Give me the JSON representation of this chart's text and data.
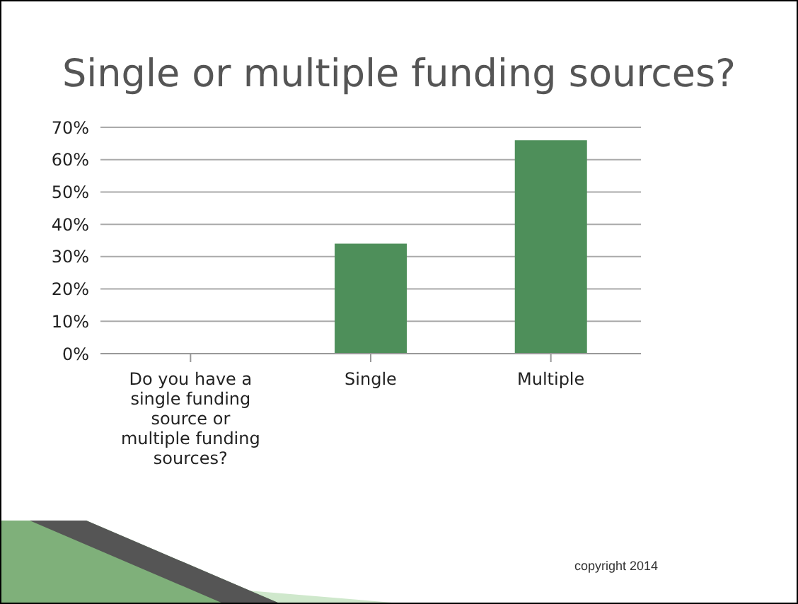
{
  "chart_data": {
    "type": "bar",
    "title": "Single or multiple funding sources?",
    "categories": [
      "Do you have a single funding source or multiple funding sources?",
      "Single",
      "Multiple"
    ],
    "values": [
      null,
      34,
      66
    ],
    "color": "#4e8f5a",
    "ylim": [
      0,
      70
    ],
    "yticks": [
      {
        "value": 0,
        "label": "0%"
      },
      {
        "value": 10,
        "label": "10%"
      },
      {
        "value": 20,
        "label": "20%"
      },
      {
        "value": 30,
        "label": "30%"
      },
      {
        "value": 40,
        "label": "40%"
      },
      {
        "value": 50,
        "label": "50%"
      },
      {
        "value": 60,
        "label": "60%"
      },
      {
        "value": 70,
        "label": "70%"
      }
    ],
    "grid": "y",
    "annotations": [
      "copyright 2014"
    ]
  }
}
